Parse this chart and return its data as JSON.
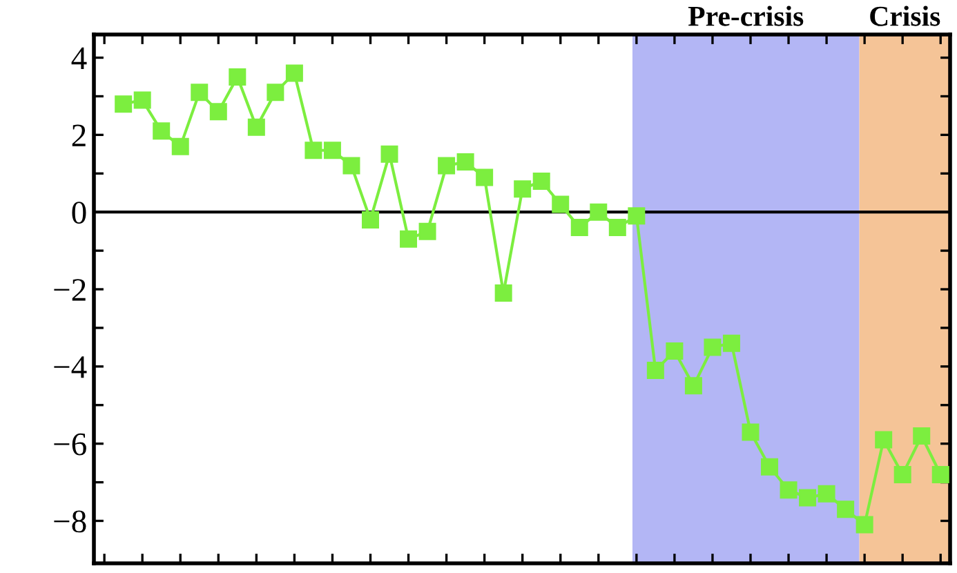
{
  "chart_data": {
    "type": "line",
    "categories": [
      null,
      null,
      null,
      null,
      null,
      null,
      null,
      null,
      null,
      null,
      null,
      null,
      null,
      null,
      null,
      null,
      null,
      null,
      null,
      null,
      null,
      null,
      null,
      null,
      null,
      null,
      null,
      null,
      null,
      null,
      null,
      null,
      null,
      null,
      null,
      null,
      null,
      null,
      null,
      null,
      null,
      null,
      null,
      null
    ],
    "series": [
      {
        "color": "#7cee3f",
        "values": [
          2.8,
          2.9,
          2.1,
          1.7,
          3.1,
          2.6,
          3.5,
          2.2,
          3.1,
          3.6,
          1.6,
          1.6,
          1.2,
          -0.2,
          1.5,
          -0.7,
          -0.5,
          1.2,
          1.3,
          0.9,
          -2.1,
          0.6,
          0.8,
          0.2,
          -0.4,
          0.0,
          -0.4,
          -0.1,
          -4.1,
          -3.6,
          -4.5,
          -3.5,
          -3.4,
          -5.7,
          -6.6,
          -7.2,
          -7.4,
          -7.3,
          -7.7,
          -8.1,
          -5.9,
          -6.8,
          -5.8,
          -6.8
        ]
      }
    ],
    "marker": "square",
    "line_style": "solid",
    "ylim": [
      -9.1,
      4.6
    ],
    "yticks": [
      {
        "value": -8,
        "label": "−8"
      },
      {
        "value": -7,
        "label": null
      },
      {
        "value": -6,
        "label": "−6"
      },
      {
        "value": -5,
        "label": null
      },
      {
        "value": -4,
        "label": "−4"
      },
      {
        "value": -3,
        "label": null
      },
      {
        "value": -2,
        "label": "−2"
      },
      {
        "value": -1,
        "label": null
      },
      0,
      {
        "value": 1,
        "label": null
      },
      2,
      {
        "value": 3,
        "label": null
      },
      4
    ],
    "tick_labels": "y",
    "grid": false,
    "legend": false,
    "ref_lines": [
      {
        "axis": "y",
        "value": 0,
        "color": "#000000"
      }
    ],
    "annotations": [
      "Pre-crisis",
      "Crisis"
    ]
  }
}
